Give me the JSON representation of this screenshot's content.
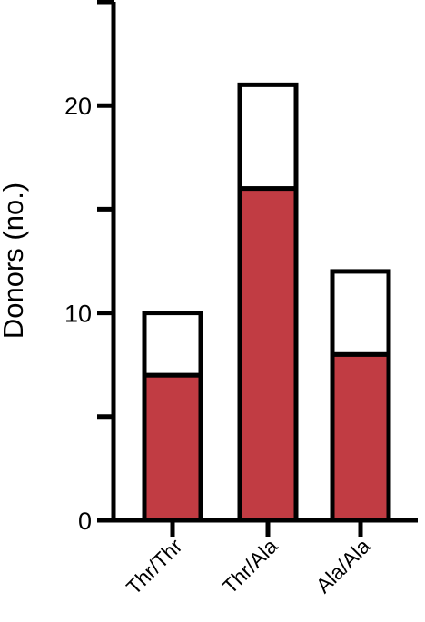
{
  "chart_data": {
    "type": "bar",
    "stacked": true,
    "categories": [
      "Thr/Thr",
      "Thr/Ala",
      "Ala/Ala"
    ],
    "series": [
      {
        "values": [
          7,
          16,
          8
        ],
        "color": "#c13c43"
      },
      {
        "values": [
          3,
          5,
          4
        ],
        "color": "#ffffff"
      }
    ],
    "ylabel": "Donors (no.)",
    "ylim": [
      0,
      25
    ],
    "yticks": [
      0,
      10,
      20
    ],
    "yminor_ticks": [
      5,
      15,
      25
    ],
    "grid": false,
    "edge_color": "#000000"
  }
}
